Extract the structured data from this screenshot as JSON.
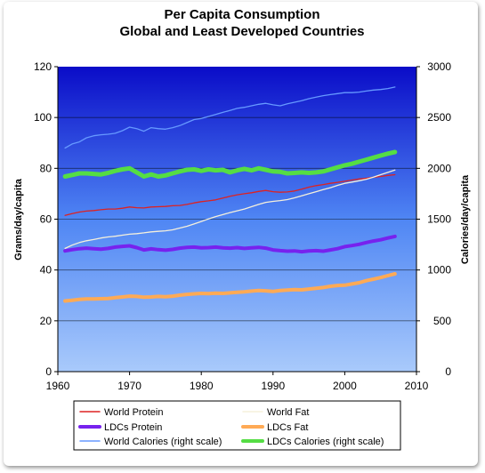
{
  "chart_data": {
    "type": "line",
    "title": "Per Capita Consumption",
    "subtitle": "Global and Least Developed Countries",
    "ylabel": "Grams/day/capita",
    "y2label": "Calories/day/capita",
    "xlabel": "",
    "xlim": [
      1960,
      2010
    ],
    "ylim": [
      0,
      120
    ],
    "y2lim": [
      0,
      3000
    ],
    "x_ticks": [
      "1960",
      "1970",
      "1980",
      "1990",
      "2000",
      "2010"
    ],
    "y_ticks": [
      "0",
      "20",
      "40",
      "60",
      "80",
      "100",
      "120"
    ],
    "y2_ticks": [
      "0",
      "500",
      "1000",
      "1500",
      "2000",
      "2500",
      "3000"
    ],
    "grid": true,
    "legend_position": "bottom",
    "x": [
      1961,
      1962,
      1963,
      1964,
      1965,
      1966,
      1967,
      1968,
      1969,
      1970,
      1971,
      1972,
      1973,
      1974,
      1975,
      1976,
      1977,
      1978,
      1979,
      1980,
      1981,
      1982,
      1983,
      1984,
      1985,
      1986,
      1987,
      1988,
      1989,
      1990,
      1991,
      1992,
      1993,
      1994,
      1995,
      1996,
      1997,
      1998,
      1999,
      2000,
      2001,
      2002,
      2003,
      2004,
      2005,
      2006,
      2007
    ],
    "series": [
      {
        "name": "World Protein",
        "color": "#dd2222",
        "axis": "left",
        "width": 1.3,
        "values": [
          61.5,
          62.2,
          62.8,
          63.2,
          63.4,
          63.7,
          64.0,
          64.0,
          64.3,
          64.8,
          64.5,
          64.4,
          64.8,
          64.9,
          65.0,
          65.3,
          65.4,
          65.8,
          66.4,
          66.9,
          67.2,
          67.6,
          68.3,
          69.0,
          69.6,
          70.0,
          70.4,
          70.9,
          71.3,
          70.8,
          70.6,
          70.7,
          71.1,
          71.8,
          72.6,
          73.2,
          73.6,
          74.1,
          74.5,
          74.9,
          75.4,
          75.8,
          76.1,
          76.5,
          76.8,
          77.2,
          77.5
        ]
      },
      {
        "name": "World Fat",
        "color": "#f5f0dc",
        "axis": "left",
        "width": 1.3,
        "values": [
          48.5,
          49.8,
          50.8,
          51.5,
          52.0,
          52.6,
          53.0,
          53.3,
          53.7,
          54.1,
          54.3,
          54.6,
          55.0,
          55.2,
          55.4,
          55.8,
          56.5,
          57.2,
          58.1,
          59.1,
          60.1,
          61.0,
          61.8,
          62.6,
          63.3,
          64.0,
          64.9,
          65.8,
          66.6,
          67.0,
          67.3,
          67.7,
          68.4,
          69.2,
          70.0,
          70.8,
          71.6,
          72.4,
          73.3,
          74.1,
          74.6,
          75.1,
          75.7,
          76.5,
          77.5,
          78.4,
          79.3
        ]
      },
      {
        "name": "LDCs Protein",
        "color": "#7722ee",
        "axis": "left",
        "width": 4,
        "values": [
          47.5,
          48.0,
          48.4,
          48.6,
          48.4,
          48.2,
          48.5,
          49.0,
          49.3,
          49.5,
          48.8,
          47.9,
          48.3,
          48.0,
          47.8,
          48.1,
          48.6,
          48.9,
          49.0,
          48.7,
          48.8,
          49.0,
          48.7,
          48.6,
          48.8,
          48.5,
          48.7,
          48.9,
          48.6,
          47.9,
          47.6,
          47.4,
          47.5,
          47.2,
          47.5,
          47.6,
          47.4,
          47.9,
          48.4,
          49.2,
          49.6,
          50.1,
          50.8,
          51.4,
          51.9,
          52.6,
          53.2
        ]
      },
      {
        "name": "LDCs Fat",
        "color": "#ffaa55",
        "axis": "left",
        "width": 4,
        "values": [
          27.8,
          28.1,
          28.4,
          28.6,
          28.6,
          28.7,
          28.8,
          29.1,
          29.4,
          29.7,
          29.6,
          29.3,
          29.4,
          29.6,
          29.5,
          29.7,
          30.1,
          30.4,
          30.6,
          30.8,
          30.7,
          30.9,
          30.8,
          31.0,
          31.2,
          31.4,
          31.7,
          31.9,
          31.8,
          31.6,
          31.9,
          32.1,
          32.3,
          32.2,
          32.5,
          32.8,
          33.1,
          33.6,
          33.9,
          34.0,
          34.5,
          35.0,
          35.8,
          36.4,
          37.0,
          37.8,
          38.5
        ]
      },
      {
        "name": "World Calories (right scale)",
        "color": "#6699ff",
        "axis": "right",
        "width": 1.3,
        "values": [
          2200,
          2240,
          2260,
          2300,
          2320,
          2330,
          2335,
          2345,
          2370,
          2405,
          2390,
          2365,
          2400,
          2390,
          2385,
          2400,
          2420,
          2450,
          2480,
          2490,
          2510,
          2530,
          2550,
          2570,
          2590,
          2600,
          2615,
          2630,
          2640,
          2625,
          2615,
          2635,
          2650,
          2665,
          2685,
          2700,
          2715,
          2725,
          2735,
          2745,
          2745,
          2750,
          2760,
          2770,
          2775,
          2785,
          2800
        ]
      },
      {
        "name": "LDCs Calories (right scale)",
        "color": "#55dd44",
        "axis": "right",
        "width": 5,
        "values": [
          1920,
          1935,
          1950,
          1950,
          1945,
          1940,
          1955,
          1975,
          1990,
          2000,
          1960,
          1920,
          1940,
          1920,
          1930,
          1950,
          1970,
          1985,
          1990,
          1975,
          1990,
          1980,
          1985,
          1960,
          1980,
          1995,
          1980,
          2000,
          1985,
          1970,
          1965,
          1950,
          1955,
          1960,
          1955,
          1960,
          1970,
          1990,
          2010,
          2030,
          2045,
          2065,
          2085,
          2105,
          2125,
          2145,
          2160
        ]
      }
    ]
  }
}
